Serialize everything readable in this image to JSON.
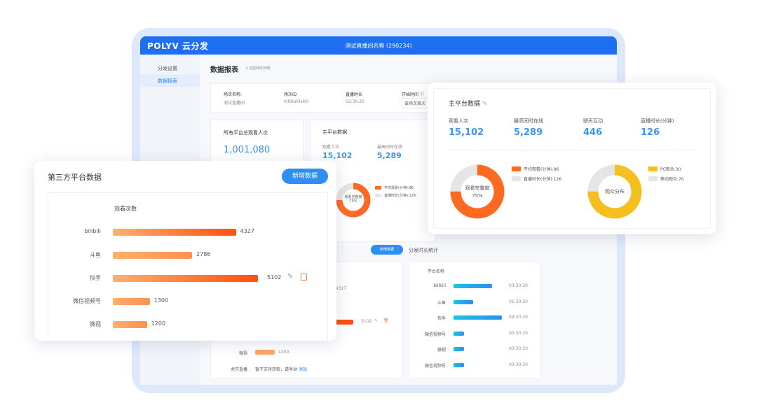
{
  "app": {
    "logo": "POLYV 云分发",
    "title": "测试直播间名称 (290234)",
    "sidebar": [
      {
        "label": "分发设置",
        "active": false
      },
      {
        "label": "数据报表",
        "active": true
      }
    ],
    "page_title": "数据报表",
    "back_link": "< 返回场次列表",
    "info": [
      {
        "label": "场次名称:",
        "value": "测试直播间"
      },
      {
        "label": "场次ID",
        "value": "hlhlkahlskhl"
      },
      {
        "label": "直播时长",
        "value": "02:30:20"
      },
      {
        "label": "开始时间 ⓘ",
        "value": "该场次首次"
      }
    ],
    "total": {
      "label": "所有平台总观看人次",
      "value": "1,001,080"
    },
    "main_bg": {
      "title": "主平台数据",
      "stats": [
        {
          "label": "观看人次",
          "value": "15,102"
        },
        {
          "label": "最高同时在线",
          "value": "5,289"
        }
      ],
      "donut_center": "观看完整度",
      "donut_pct": "75%",
      "legend": [
        "平均观看(分钟):96",
        "直播时长(分钟):126"
      ]
    },
    "add_button": "新增数据",
    "duration_tab": "分发时长统计",
    "third_bg_rows": [
      {
        "value": "4327"
      },
      {
        "value": "5102"
      }
    ],
    "third_bg_weishi": {
      "name": "微视",
      "value": "1200"
    },
    "huya": {
      "name": "虎牙直播",
      "text": "暂不支持获取，请手动",
      "link": "添加"
    },
    "duration": {
      "header": "平台名称",
      "rows": [
        {
          "name": "bilibili",
          "time": "03:30:20",
          "hours": 3.5
        },
        {
          "name": "斗鱼",
          "time": "01:30:20",
          "hours": 1.5
        },
        {
          "name": "快手",
          "time": "04:30:20",
          "hours": 4.5
        },
        {
          "name": "微信视频号",
          "time": "00:30:20",
          "hours": 0.5
        },
        {
          "name": "微视",
          "time": "00:30:20",
          "hours": 0.5
        },
        {
          "name": "微信视频号",
          "time": "00:30:20",
          "hours": 0.5
        }
      ]
    }
  },
  "main_platform": {
    "title": "主平台数据",
    "stats": [
      {
        "label": "观看人次",
        "value": "15,102"
      },
      {
        "label": "最高同时在线",
        "value": "5,289"
      },
      {
        "label": "聊天互动",
        "value": "446"
      },
      {
        "label": "直播时长(分钟)",
        "value": "126"
      }
    ],
    "donut1": {
      "center": "观看完整度",
      "pct": "75%",
      "fraction": 0.75,
      "legend": [
        "平均观看(分钟):96",
        "直播时长(分钟):126"
      ],
      "colors": [
        "#ff6a22",
        "#e5e5e5"
      ]
    },
    "donut2": {
      "center": "观众分布",
      "legend": [
        "PC观众:30",
        "移动观众:70"
      ],
      "colors": [
        "#f5bf1f",
        "#e5e5e5"
      ]
    }
  },
  "third_party": {
    "title": "第三方平台数据",
    "add_button": "新增数据",
    "column": "观看次数",
    "rows": [
      {
        "name": "bilibili",
        "value": 4327
      },
      {
        "name": "斗鱼",
        "value": 2786
      },
      {
        "name": "快手",
        "value": 5102,
        "actions": true
      },
      {
        "name": "微信视频号",
        "value": 1300
      },
      {
        "name": "微视",
        "value": 1200
      }
    ]
  }
}
